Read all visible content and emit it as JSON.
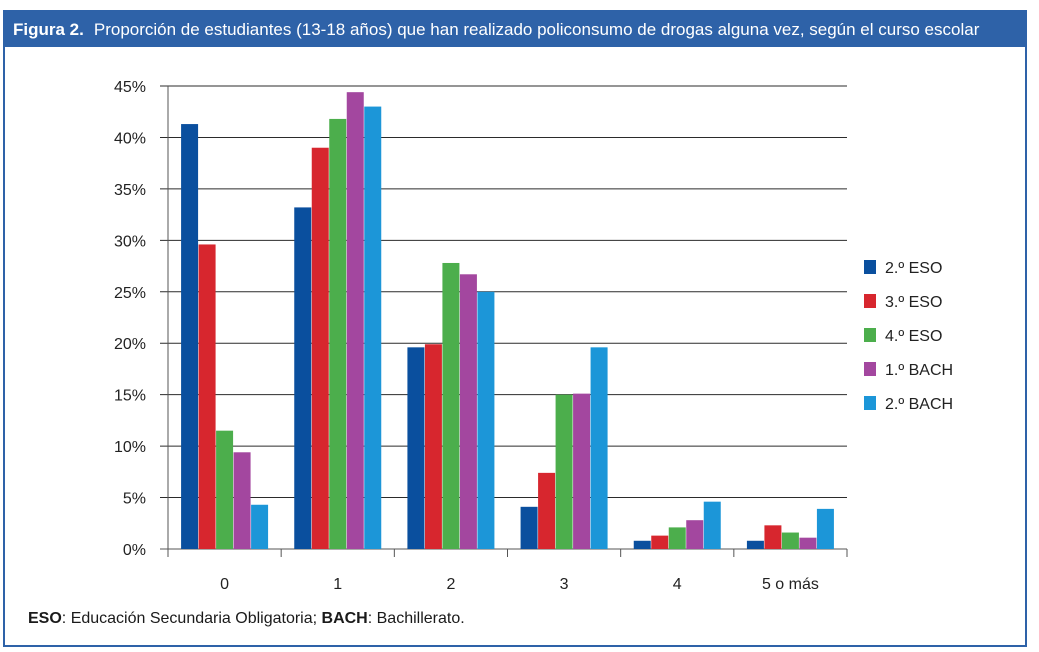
{
  "header": {
    "figure_label": "Figura 2.",
    "title": "Proporción de estudiantes (13-18 años) que han realizado policonsumo de drogas alguna vez, según el curso escolar"
  },
  "footnote": {
    "abbr1": "ESO",
    "text1": ": Educación Secundaria Obligatoria; ",
    "abbr2": "BACH",
    "text2": ": Bachillerato."
  },
  "chart_data": {
    "type": "bar",
    "title": "Proporción de estudiantes (13-18 años) que han realizado policonsumo de drogas alguna vez, según el curso escolar",
    "xlabel": "",
    "ylabel": "",
    "ylim": [
      0,
      45
    ],
    "yticks": [
      0,
      5,
      10,
      15,
      20,
      25,
      30,
      35,
      40,
      45
    ],
    "ytick_labels": [
      "0%",
      "5%",
      "10%",
      "15%",
      "20%",
      "25%",
      "30%",
      "35%",
      "40%",
      "45%"
    ],
    "categories": [
      "0",
      "1",
      "2",
      "3",
      "4",
      "5 o más"
    ],
    "legend_position": "right",
    "grid": true,
    "series": [
      {
        "name": "2.º ESO",
        "color": "#0a4f9e",
        "values": [
          41.3,
          33.2,
          19.6,
          4.1,
          0.8,
          0.8
        ]
      },
      {
        "name": "3.º ESO",
        "color": "#d7262e",
        "values": [
          29.6,
          39.0,
          19.9,
          7.4,
          1.3,
          2.3
        ]
      },
      {
        "name": "4.º ESO",
        "color": "#4cae4c",
        "values": [
          11.5,
          41.8,
          27.8,
          15.0,
          2.1,
          1.6
        ]
      },
      {
        "name": "1.º BACH",
        "color": "#a3479f",
        "values": [
          9.4,
          44.4,
          26.7,
          15.1,
          2.8,
          1.1
        ]
      },
      {
        "name": "2.º BACH",
        "color": "#1c96d8",
        "values": [
          4.3,
          43.0,
          25.0,
          19.6,
          4.6,
          3.9
        ]
      }
    ]
  }
}
